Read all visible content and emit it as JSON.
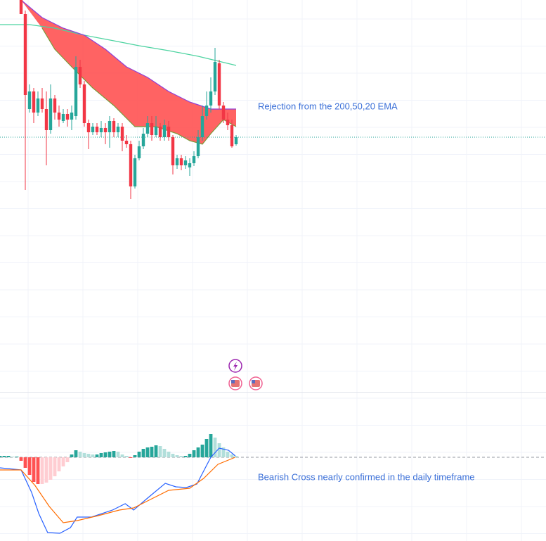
{
  "chart_data": [
    {
      "type": "candlestick",
      "annotation": "Rejection from the 200,50,20 EMA",
      "xlim": [
        -5,
        124.5
      ],
      "ylim": [
        0,
        560
      ],
      "x": [
        0,
        1,
        2,
        3,
        4,
        5,
        6,
        7,
        8,
        9,
        10,
        11,
        12,
        13,
        14,
        15,
        16,
        17,
        18,
        19,
        20,
        21,
        22,
        23,
        24,
        25,
        26,
        27,
        28,
        29,
        30,
        31,
        32,
        33,
        34,
        35,
        36,
        37,
        38,
        39,
        40,
        41,
        42,
        43,
        44,
        45,
        46,
        47,
        48,
        49,
        50,
        51
      ],
      "open": [
        560,
        540,
        405,
        430,
        400,
        420,
        405,
        375,
        420,
        400,
        388,
        398,
        390,
        395,
        465,
        440,
        385,
        372,
        380,
        372,
        378,
        372,
        388,
        372,
        380,
        360,
        355,
        295,
        335,
        352,
        370,
        385,
        368,
        380,
        365,
        380,
        365,
        325,
        335,
        325,
        322,
        328,
        338,
        365,
        395,
        410,
        430,
        470,
        410,
        390,
        382,
        355
      ],
      "high": [
        560,
        545,
        440,
        435,
        430,
        435,
        430,
        440,
        425,
        410,
        405,
        405,
        410,
        480,
        475,
        445,
        390,
        385,
        385,
        388,
        385,
        395,
        392,
        385,
        385,
        368,
        360,
        340,
        360,
        378,
        395,
        395,
        395,
        385,
        390,
        388,
        368,
        340,
        340,
        338,
        335,
        345,
        375,
        410,
        430,
        450,
        492,
        475,
        415,
        400,
        390,
        368
      ],
      "low": [
        540,
        290,
        400,
        385,
        395,
        400,
        325,
        370,
        390,
        380,
        385,
        380,
        375,
        390,
        435,
        380,
        348,
        368,
        368,
        365,
        355,
        350,
        365,
        365,
        345,
        350,
        277,
        292,
        332,
        348,
        365,
        360,
        365,
        360,
        360,
        360,
        312,
        320,
        318,
        320,
        310,
        324,
        335,
        360,
        390,
        400,
        425,
        405,
        385,
        375,
        350,
        353
      ],
      "close": [
        540,
        425,
        430,
        400,
        420,
        405,
        375,
        420,
        400,
        390,
        398,
        390,
        400,
        465,
        440,
        385,
        372,
        380,
        372,
        378,
        372,
        388,
        372,
        380,
        360,
        355,
        295,
        335,
        352,
        370,
        385,
        368,
        380,
        365,
        382,
        365,
        325,
        335,
        325,
        332,
        328,
        338,
        365,
        395,
        410,
        430,
        472,
        410,
        390,
        382,
        352,
        365
      ],
      "up_color": "#26a69a",
      "down_color": "#f23645",
      "price_line": 365,
      "price_line_color": "#26a69a",
      "cloud_color": "#ff5252",
      "series": [
        {
          "color": "#4cd3a0",
          "x": [
            -5,
            2,
            8,
            15,
            22,
            28,
            35,
            42,
            51
          ],
          "values": [
            525,
            525,
            520,
            510,
            502,
            495,
            488,
            480,
            467
          ]
        },
        {
          "color": "#8e3fd8",
          "x": [
            0,
            5,
            10,
            15,
            20,
            25,
            30,
            35,
            40,
            45,
            51
          ],
          "values": [
            560,
            535,
            520,
            510,
            490,
            465,
            450,
            430,
            415,
            405,
            405
          ]
        },
        {
          "color": "#7a9a3a",
          "x": [
            5,
            8,
            12,
            17,
            22,
            27,
            32,
            37,
            40,
            43,
            45,
            48,
            51
          ],
          "values": [
            520,
            490,
            465,
            435,
            410,
            380,
            380,
            370,
            360,
            355,
            370,
            390,
            380
          ]
        }
      ]
    },
    {
      "type": "macd",
      "annotation": "Bearish Cross nearly confirmed in the daily timeframe",
      "xlim": [
        -5,
        124.5
      ],
      "ylim": [
        -119,
        92
      ],
      "zero_line": 0,
      "histogram": {
        "x": [
          -5,
          -4,
          -3,
          -2,
          -1,
          0,
          1,
          2,
          3,
          4,
          5,
          6,
          7,
          8,
          9,
          10,
          11,
          12,
          13,
          14,
          15,
          16,
          17,
          18,
          19,
          20,
          21,
          22,
          23,
          24,
          25,
          26,
          27,
          28,
          29,
          30,
          31,
          32,
          33,
          34,
          35,
          36,
          37,
          38,
          39,
          40,
          41,
          42,
          43,
          44,
          45,
          46,
          47,
          48,
          49,
          50,
          51
        ],
        "values": [
          2,
          2,
          2,
          1,
          1,
          -5,
          -15,
          -25,
          -35,
          -38,
          -38,
          -36,
          -32,
          -27,
          -20,
          -13,
          -7,
          4,
          10,
          8,
          6,
          5,
          4,
          4,
          6,
          7,
          8,
          9,
          8,
          4,
          2,
          -1,
          3,
          8,
          12,
          14,
          15,
          17,
          16,
          12,
          8,
          5,
          3,
          2,
          2,
          5,
          10,
          14,
          18,
          26,
          33,
          28,
          20,
          14,
          8,
          4,
          2
        ],
        "colors": [
          "#26a69a",
          "#b2dfdb",
          "#ffcdd2",
          "#ff5252"
        ]
      },
      "series": [
        {
          "color": "#2962ff",
          "x": [
            -5,
            0,
            2.5,
            4.2,
            6.3,
            9.2,
            11.7,
            13.3,
            16.7,
            21.7,
            24.7,
            26.7,
            30,
            34.2,
            36.7,
            39.2,
            41.7,
            45,
            47,
            49.2,
            50.8
          ],
          "values": [
            -15,
            -18,
            -50,
            -80,
            -107,
            -108,
            -100,
            -85,
            -85,
            -75,
            -66,
            -75,
            -58,
            -37,
            -42,
            -43,
            -38,
            0,
            13,
            10,
            2
          ]
        },
        {
          "color": "#ff6d00",
          "x": [
            -5,
            0,
            3.3,
            6.7,
            10,
            13.3,
            18.3,
            23.3,
            26.7,
            30,
            35,
            40,
            43.3,
            46.7,
            50.8
          ],
          "values": [
            -18,
            -18,
            -40,
            -70,
            -93,
            -90,
            -83,
            -75,
            -72,
            -62,
            -47,
            -44,
            -30,
            -10,
            0
          ]
        }
      ]
    }
  ]
}
